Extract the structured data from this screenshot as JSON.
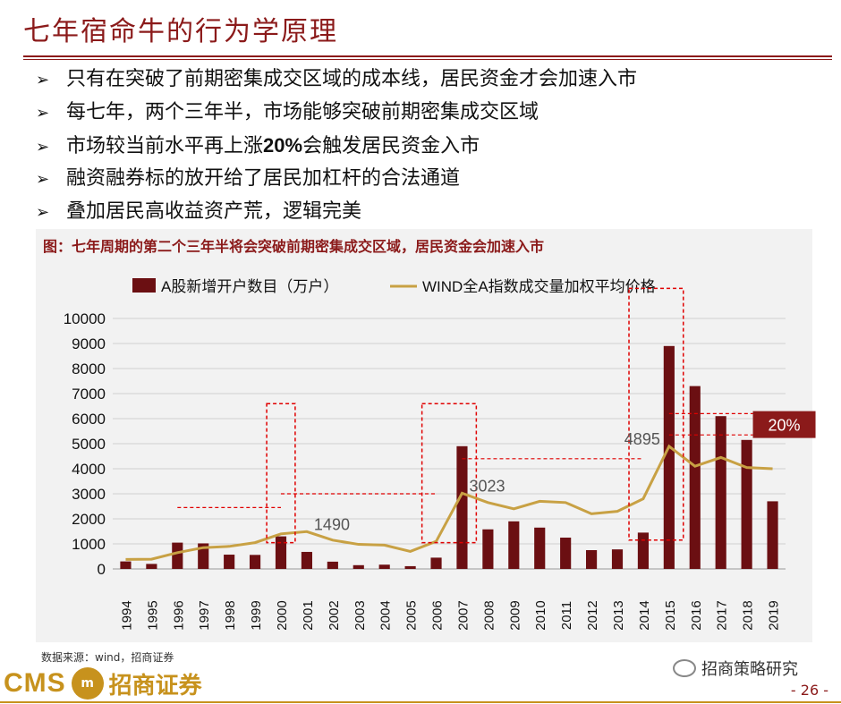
{
  "title": "七年宿命牛的行为学原理",
  "bullets": [
    {
      "arrow": "➢",
      "text": "只有在突破了前期密集成交区域的成本线，居民资金才会加速入市"
    },
    {
      "arrow": "➢",
      "text": "每七年，两个三年半，市场能够突破前期密集成交区域"
    },
    {
      "arrow": "➢",
      "pre": "市场较当前水平再上涨",
      "bold": "20%",
      "post": "会触发居民资金入市"
    },
    {
      "arrow": "➢",
      "text": "融资融券标的放开给了居民加杠杆的合法通道"
    },
    {
      "arrow": "➢",
      "text": "叠加居民高收益资产荒，逻辑完美"
    }
  ],
  "figure_title": "图：七年周期的第二个三年半将会突破前期密集成交区域，居民资金会加速入市",
  "source": "数据来源：wind，招商证券",
  "footer": {
    "logo_text": "CMS",
    "logo_badge": "m",
    "logo_cn": "招商证券",
    "wechat": "招商策略研究",
    "page": "- 26 -"
  },
  "colors": {
    "accent": "#8b1a1a",
    "bar": "#6b0f12",
    "line": "#c8a144",
    "gold": "#c7921d",
    "marker": "#e00000"
  },
  "chart_data": {
    "type": "bar+line",
    "categories": [
      "1994",
      "1995",
      "1996",
      "1997",
      "1998",
      "1999",
      "2000",
      "2001",
      "2002",
      "2003",
      "2004",
      "2005",
      "2006",
      "2007",
      "2008",
      "2009",
      "2010",
      "2011",
      "2012",
      "2013",
      "2014",
      "2015",
      "2016",
      "2017",
      "2018",
      "2019"
    ],
    "series": [
      {
        "name": "A股新增开户数目（万户）",
        "type": "bar",
        "values": [
          300,
          200,
          1050,
          1020,
          570,
          560,
          1300,
          680,
          290,
          150,
          170,
          110,
          450,
          4900,
          1580,
          1900,
          1650,
          1250,
          750,
          780,
          1450,
          8900,
          7300,
          6100,
          5150,
          2700
        ]
      },
      {
        "name": "WIND全A指数成交量加权平均价格",
        "type": "line",
        "values": [
          380,
          390,
          650,
          850,
          900,
          1050,
          1400,
          1490,
          1150,
          980,
          950,
          700,
          1100,
          3023,
          2650,
          2400,
          2700,
          2650,
          2200,
          2300,
          2800,
          4895,
          4100,
          4450,
          4050,
          4000
        ]
      }
    ],
    "ylim": [
      0,
      10000
    ],
    "yticks": [
      0,
      1000,
      2000,
      3000,
      4000,
      5000,
      6000,
      7000,
      8000,
      9000,
      10000
    ],
    "annotations": [
      {
        "label": "1490",
        "category": "2001",
        "value": 1490
      },
      {
        "label": "3023",
        "category": "2007",
        "value": 3023
      },
      {
        "label": "4895",
        "category": "2015",
        "value": 4895
      },
      {
        "label": "20%",
        "category": "2019",
        "value": 5800
      }
    ],
    "legend_position": "top",
    "grid": true
  }
}
